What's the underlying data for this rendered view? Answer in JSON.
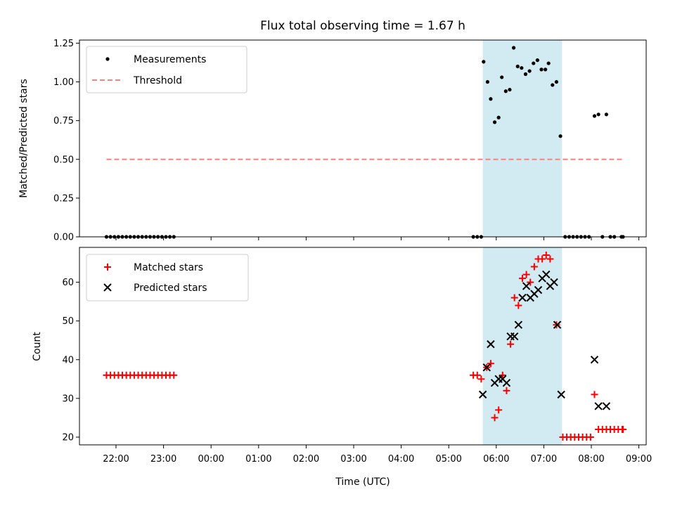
{
  "title": "Flux total observing time = 1.67 h",
  "colors": {
    "measurements": "#000000",
    "threshold": "#ff7f7f",
    "matched": "#ff0000",
    "predicted": "#000000",
    "shade": "#add8e6"
  },
  "chart_data": [
    {
      "type": "scatter",
      "panel": "top",
      "ylabel": "Matched/Predicted stars",
      "ylim": [
        0,
        1.27
      ],
      "yticks": [
        0,
        0.25,
        0.5,
        0.75,
        1.0,
        1.25
      ],
      "ytick_labels": [
        "0.00",
        "0.25",
        "0.50",
        "0.75",
        "1.00",
        "1.25"
      ],
      "shaded_interval": [
        "05:43",
        "07:23"
      ],
      "legend": {
        "placement": "top-left",
        "entries": [
          "Measurements",
          "Threshold"
        ]
      },
      "threshold": {
        "name": "Threshold",
        "value": 0.5,
        "x_start": "21:48",
        "x_end": "08:40"
      },
      "series": [
        {
          "name": "Measurements",
          "points": [
            [
              "21:48",
              0
            ],
            [
              "21:53",
              0
            ],
            [
              "21:58",
              0
            ],
            [
              "22:03",
              0
            ],
            [
              "22:08",
              0
            ],
            [
              "22:13",
              0
            ],
            [
              "22:18",
              0
            ],
            [
              "22:23",
              0
            ],
            [
              "22:28",
              0
            ],
            [
              "22:33",
              0
            ],
            [
              "22:38",
              0
            ],
            [
              "22:43",
              0
            ],
            [
              "22:48",
              0
            ],
            [
              "22:53",
              0
            ],
            [
              "22:58",
              0
            ],
            [
              "23:03",
              0
            ],
            [
              "23:08",
              0
            ],
            [
              "23:13",
              0
            ],
            [
              "05:31",
              0
            ],
            [
              "05:36",
              0
            ],
            [
              "05:41",
              0
            ],
            [
              "05:44",
              1.13
            ],
            [
              "05:49",
              1.0
            ],
            [
              "05:53",
              0.89
            ],
            [
              "05:58",
              0.74
            ],
            [
              "06:03",
              0.77
            ],
            [
              "06:07",
              1.03
            ],
            [
              "06:12",
              0.94
            ],
            [
              "06:17",
              0.95
            ],
            [
              "06:22",
              1.22
            ],
            [
              "06:27",
              1.1
            ],
            [
              "06:32",
              1.09
            ],
            [
              "06:37",
              1.05
            ],
            [
              "06:42",
              1.07
            ],
            [
              "06:47",
              1.12
            ],
            [
              "06:52",
              1.14
            ],
            [
              "06:57",
              1.08
            ],
            [
              "07:02",
              1.08
            ],
            [
              "07:06",
              1.12
            ],
            [
              "07:11",
              0.98
            ],
            [
              "07:16",
              1.0
            ],
            [
              "07:21",
              0.65
            ],
            [
              "07:27",
              0
            ],
            [
              "07:32",
              0
            ],
            [
              "07:37",
              0
            ],
            [
              "07:42",
              0
            ],
            [
              "07:47",
              0
            ],
            [
              "07:52",
              0
            ],
            [
              "07:57",
              0
            ],
            [
              "08:04",
              0.78
            ],
            [
              "08:09",
              0.79
            ],
            [
              "08:14",
              0
            ],
            [
              "08:19",
              0.79
            ],
            [
              "08:24",
              0
            ],
            [
              "08:29",
              0
            ],
            [
              "08:38",
              0
            ],
            [
              "08:40",
              0
            ]
          ]
        }
      ]
    },
    {
      "type": "scatter",
      "panel": "bottom",
      "xlabel": "Time (UTC)",
      "ylabel": "Count",
      "ylim": [
        18,
        69
      ],
      "yticks": [
        20,
        30,
        40,
        50,
        60
      ],
      "xticks": [
        "22:00",
        "23:00",
        "00:00",
        "01:00",
        "02:00",
        "03:00",
        "04:00",
        "05:00",
        "06:00",
        "07:00",
        "08:00",
        "09:00"
      ],
      "shaded_interval": [
        "05:43",
        "07:23"
      ],
      "legend": {
        "placement": "top-left",
        "entries": [
          "Matched stars",
          "Predicted stars"
        ]
      },
      "series": [
        {
          "name": "Matched stars",
          "marker": "plus",
          "points": [
            [
              "21:48",
              36
            ],
            [
              "21:53",
              36
            ],
            [
              "21:58",
              36
            ],
            [
              "22:03",
              36
            ],
            [
              "22:08",
              36
            ],
            [
              "22:13",
              36
            ],
            [
              "22:18",
              36
            ],
            [
              "22:23",
              36
            ],
            [
              "22:28",
              36
            ],
            [
              "22:33",
              36
            ],
            [
              "22:38",
              36
            ],
            [
              "22:43",
              36
            ],
            [
              "22:48",
              36
            ],
            [
              "22:53",
              36
            ],
            [
              "22:58",
              36
            ],
            [
              "23:03",
              36
            ],
            [
              "23:08",
              36
            ],
            [
              "23:13",
              36
            ],
            [
              "05:31",
              36
            ],
            [
              "05:36",
              36
            ],
            [
              "05:41",
              35
            ],
            [
              "05:48",
              38
            ],
            [
              "05:53",
              39
            ],
            [
              "05:58",
              25
            ],
            [
              "06:03",
              27
            ],
            [
              "06:08",
              36
            ],
            [
              "06:13",
              32
            ],
            [
              "06:18",
              44
            ],
            [
              "06:23",
              56
            ],
            [
              "06:28",
              54
            ],
            [
              "06:33",
              61
            ],
            [
              "06:38",
              62
            ],
            [
              "06:43",
              60
            ],
            [
              "06:48",
              64
            ],
            [
              "06:53",
              66
            ],
            [
              "06:58",
              66
            ],
            [
              "07:03",
              67
            ],
            [
              "07:08",
              66
            ],
            [
              "07:16",
              49
            ],
            [
              "07:24",
              20
            ],
            [
              "07:29",
              20
            ],
            [
              "07:34",
              20
            ],
            [
              "07:39",
              20
            ],
            [
              "07:44",
              20
            ],
            [
              "07:49",
              20
            ],
            [
              "07:54",
              20
            ],
            [
              "07:59",
              20
            ],
            [
              "08:04",
              31
            ],
            [
              "08:09",
              22
            ],
            [
              "08:14",
              22
            ],
            [
              "08:19",
              22
            ],
            [
              "08:24",
              22
            ],
            [
              "08:29",
              22
            ],
            [
              "08:34",
              22
            ],
            [
              "08:39",
              22
            ],
            [
              "08:40",
              22
            ]
          ]
        },
        {
          "name": "Predicted stars",
          "marker": "x",
          "points": [
            [
              "05:43",
              31
            ],
            [
              "05:48",
              38
            ],
            [
              "05:53",
              44
            ],
            [
              "05:58",
              34
            ],
            [
              "06:03",
              35
            ],
            [
              "06:08",
              35
            ],
            [
              "06:13",
              34
            ],
            [
              "06:18",
              46
            ],
            [
              "06:23",
              46
            ],
            [
              "06:28",
              49
            ],
            [
              "06:33",
              56
            ],
            [
              "06:38",
              59
            ],
            [
              "06:43",
              56
            ],
            [
              "06:48",
              57
            ],
            [
              "06:53",
              58
            ],
            [
              "06:58",
              61
            ],
            [
              "07:03",
              62
            ],
            [
              "07:08",
              59
            ],
            [
              "07:13",
              60
            ],
            [
              "07:17",
              49
            ],
            [
              "07:22",
              31
            ],
            [
              "08:04",
              40
            ],
            [
              "08:09",
              28
            ],
            [
              "08:19",
              28
            ]
          ]
        }
      ]
    }
  ]
}
